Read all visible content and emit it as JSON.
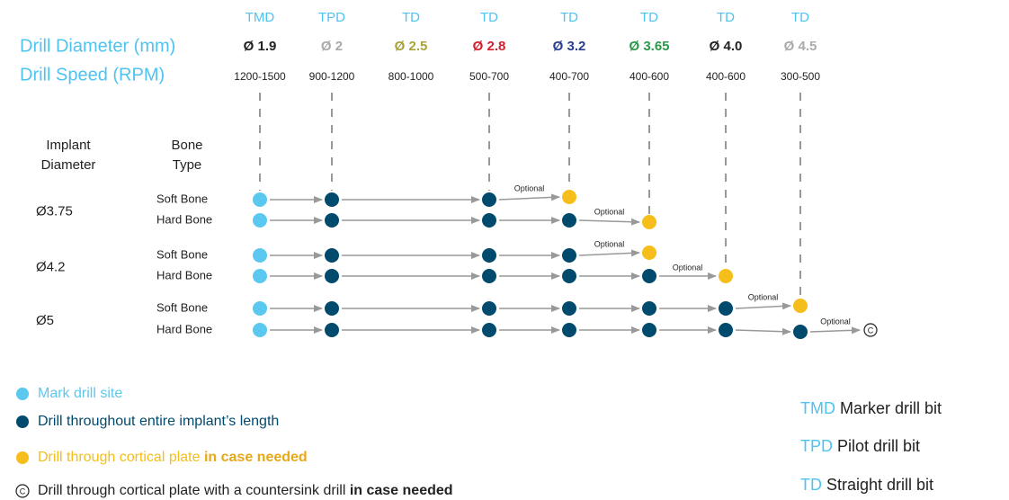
{
  "header": {
    "diameter_label": "Drill Diameter (mm)",
    "speed_label": "Drill Speed (RPM)",
    "implant_label": [
      "Implant",
      "Diameter"
    ],
    "bone_label": [
      "Bone",
      "Type"
    ]
  },
  "drills": [
    {
      "type": "TMD",
      "diameter": "Ø 1.9",
      "speed": "1200-1500"
    },
    {
      "type": "TPD",
      "diameter": "Ø 2",
      "speed": "900-1200"
    },
    {
      "type": "TD",
      "diameter": "Ø 2.5",
      "speed": "800-1000"
    },
    {
      "type": "TD",
      "diameter": "Ø 2.8",
      "speed": "500-700"
    },
    {
      "type": "TD",
      "diameter": "Ø 3.2",
      "speed": "400-700"
    },
    {
      "type": "TD",
      "diameter": "Ø 3.65",
      "speed": "400-600"
    },
    {
      "type": "TD",
      "diameter": "Ø 4.0",
      "speed": "400-600"
    },
    {
      "type": "TD",
      "diameter": "Ø 4.5",
      "speed": "300-500"
    }
  ],
  "implants": [
    {
      "diameter": "Ø3.75",
      "bones": [
        "Soft Bone",
        "Hard Bone"
      ]
    },
    {
      "diameter": "Ø4.2",
      "bones": [
        "Soft Bone",
        "Hard Bone"
      ]
    },
    {
      "diameter": "Ø5",
      "bones": [
        "Soft Bone",
        "Hard Bone"
      ]
    }
  ],
  "optional_label": "Optional",
  "countersink_symbol": "C",
  "legend": [
    {
      "text": "Mark drill site"
    },
    {
      "text": "Drill throughout entire implant’s length"
    },
    {
      "text": "Drill through cortical plate ",
      "bold": "in case needed"
    },
    {
      "text": "Drill through cortical plate with a countersink drill ",
      "bold": "in case needed"
    }
  ],
  "bit_legend": [
    {
      "code": "TMD",
      "text": " Marker drill bit"
    },
    {
      "code": "TPD",
      "text": " Pilot drill bit"
    },
    {
      "code": "TD",
      "text": " Straight drill bit"
    }
  ]
}
